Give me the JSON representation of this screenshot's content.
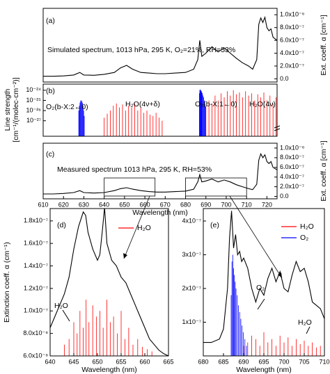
{
  "chart_data": [
    {
      "type": "line",
      "panel_label": "(a)",
      "annotations": [
        {
          "text": "Simulated spectrum, 1013 hPa, 295 K, O₂=21%, RH=53%",
          "color": "#000000"
        }
      ],
      "y_label": [
        "Ext. coeff. α [cm⁻¹]"
      ],
      "y_side": "right",
      "xlim": [
        610,
        725
      ],
      "ylim": [
        -5e-08,
        1.1e-06
      ],
      "yticks": [
        {
          "value": 0,
          "label": "0.0"
        },
        {
          "value": 2e-07,
          "label": "2.0x10⁻⁷"
        },
        {
          "value": 4e-07,
          "label": "4.0x10⁻⁷"
        },
        {
          "value": 6e-07,
          "label": "6.0x10⁻⁷"
        },
        {
          "value": 8e-07,
          "label": "8.0x10⁻⁷"
        },
        {
          "value": 1e-06,
          "label": "1.0x10⁻⁶"
        }
      ],
      "series": [
        {
          "kind": "line",
          "color": "#000000",
          "x": [
            610,
            615,
            620,
            625,
            628,
            630,
            635,
            640,
            645,
            648,
            651,
            654,
            658,
            662,
            666,
            670,
            675,
            680,
            684,
            686,
            687,
            688,
            690,
            693,
            696,
            699,
            702,
            705,
            708,
            711,
            713,
            715,
            716,
            717,
            718,
            719,
            720,
            721,
            722,
            723,
            725
          ],
          "values": [
            4e-08,
            4e-08,
            4.5e-08,
            6e-08,
            1e-07,
            6e-08,
            5.5e-08,
            7e-08,
            1e-07,
            1.7e-07,
            2.1e-07,
            1.5e-07,
            1e-07,
            9e-08,
            8e-08,
            8e-08,
            9e-08,
            1e-07,
            1.5e-07,
            3e-07,
            6e-07,
            3.5e-07,
            4e-07,
            5e-07,
            4.2e-07,
            4.8e-07,
            4e-07,
            3.2e-07,
            2.5e-07,
            2e-07,
            1.5e-07,
            3e-07,
            8.5e-07,
            9.5e-07,
            8.8e-07,
            9.6e-07,
            8e-07,
            7.5e-07,
            7.8e-07,
            6.5e-07,
            6e-07
          ]
        }
      ]
    },
    {
      "type": "stick",
      "panel_label": "(b)",
      "log_y": true,
      "annotations": [
        {
          "text": "O₂(b-X:2←0)",
          "color": "#0000ff"
        },
        {
          "text": "H₂O(4ν+δ)",
          "color": "#ff0000"
        },
        {
          "text": "O₂(b-X:1←0)",
          "color": "#0000ff"
        },
        {
          "text": "H₂O(4ν)",
          "color": "#ff0000"
        }
      ],
      "y_label": [
        "Line strength",
        "[cm⁻¹/(molec·cm⁻²)]"
      ],
      "y_side": "left",
      "xlim": [
        610,
        725
      ],
      "ylim": [
        3e-29,
        4e-24
      ],
      "yticks": [
        {
          "value": 1e-27,
          "label": "10⁻²⁷"
        },
        {
          "value": 1e-26,
          "label": "10⁻²⁶"
        },
        {
          "value": 1e-25,
          "label": "10⁻²⁵"
        },
        {
          "value": 1e-24,
          "label": "10⁻²⁴"
        }
      ],
      "series": [
        {
          "kind": "stick",
          "color": "#0000ff",
          "x": [
            627.5,
            627.8,
            628.1,
            628.4,
            628.7,
            629.0,
            629.3,
            629.6,
            629.9,
            630.2
          ],
          "values": [
            1e-26,
            3e-26,
            6e-26,
            1e-25,
            8e-26,
            1e-25,
            6e-26,
            3e-26,
            1e-26,
            3e-27
          ]
        },
        {
          "kind": "stick",
          "color": "#ff0000",
          "x": [
            640,
            641.5,
            643,
            644.5,
            646,
            647.5,
            649,
            650.5,
            652,
            653.5,
            655,
            656.5,
            658,
            659.5,
            661,
            662.5,
            664,
            665.5,
            667,
            668.5
          ],
          "values": [
            2e-27,
            5e-27,
            1e-26,
            3e-26,
            5e-26,
            2e-26,
            4e-26,
            1e-26,
            3e-26,
            2e-26,
            5e-26,
            1e-26,
            2e-26,
            6e-27,
            1e-26,
            4e-27,
            3e-27,
            6e-27,
            2e-27,
            1e-27
          ]
        },
        {
          "kind": "stick",
          "color": "#0000ff",
          "x": [
            686.8,
            687.0,
            687.2,
            687.4,
            687.6,
            687.8,
            688.0,
            688.3,
            688.6,
            688.9,
            689.2,
            689.5,
            689.8
          ],
          "values": [
            5e-25,
            1e-24,
            1.2e-24,
            1e-24,
            9e-25,
            8e-25,
            6e-25,
            5e-25,
            3e-25,
            2e-25,
            1e-25,
            5e-26,
            2e-26
          ]
        },
        {
          "kind": "stick",
          "color": "#ff0000",
          "x": [
            690,
            691.5,
            693,
            694.5,
            696,
            697.5,
            699,
            700.5,
            702,
            703.5,
            705,
            706.5,
            708,
            709.5,
            711,
            712.5,
            714,
            715.5,
            717,
            718.5,
            720,
            721.5,
            723,
            724.5
          ],
          "values": [
            3e-26,
            1e-25,
            5e-26,
            3e-25,
            1e-25,
            5e-25,
            2e-25,
            8e-25,
            3e-25,
            1e-24,
            4e-25,
            6e-25,
            2e-25,
            8e-25,
            3e-25,
            5e-25,
            1e-25,
            4e-25,
            2e-25,
            6e-25,
            1e-25,
            3e-25,
            5e-26,
            2e-25
          ]
        }
      ]
    },
    {
      "type": "line",
      "panel_label": "(c)",
      "annotations": [
        {
          "text": "Measured spectrum 1013 hPa, 295 K, RH=53%",
          "color": "#000000"
        }
      ],
      "y_label": [
        "Ext. coeff. α [cm⁻¹]"
      ],
      "y_side": "right",
      "x_label": "Wavelength (nm)",
      "xlim": [
        610,
        725
      ],
      "ylim": [
        -5e-08,
        1.1e-06
      ],
      "xticks": [
        610,
        620,
        630,
        640,
        650,
        660,
        670,
        680,
        690,
        700,
        710,
        720
      ],
      "yticks": [
        {
          "value": 0,
          "label": "0.0"
        },
        {
          "value": 2e-07,
          "label": "2.0x10⁻⁷"
        },
        {
          "value": 4e-07,
          "label": "4.0x10⁻⁷"
        },
        {
          "value": 6e-07,
          "label": "6.0x10⁻⁷"
        },
        {
          "value": 8e-07,
          "label": "8.0x10⁻⁷"
        },
        {
          "value": 1e-06,
          "label": "1.0x10⁻⁶"
        }
      ],
      "series": [
        {
          "kind": "line",
          "color": "#000000",
          "x": [
            610,
            615,
            620,
            625,
            628,
            630,
            635,
            640,
            645,
            648,
            651,
            654,
            658,
            662,
            666,
            670,
            675,
            680,
            684,
            686,
            687,
            688,
            690,
            693,
            696,
            699,
            702,
            705,
            708,
            711,
            713,
            715,
            716,
            717,
            718,
            719,
            720,
            721,
            722,
            723,
            725
          ],
          "values": [
            5e-08,
            5e-08,
            6e-08,
            8e-08,
            1.2e-07,
            8e-08,
            7e-08,
            8e-08,
            1.2e-07,
            1.6e-07,
            1.8e-07,
            1.5e-07,
            1.2e-07,
            1e-07,
            9e-08,
            9e-08,
            1e-07,
            1.1e-07,
            1.5e-07,
            3e-07,
            4.5e-07,
            3e-07,
            3.2e-07,
            3.6e-07,
            3e-07,
            3.4e-07,
            3e-07,
            2.4e-07,
            2e-07,
            1.6e-07,
            1.4e-07,
            2.5e-07,
            7.5e-07,
            8.8e-07,
            8e-07,
            8.6e-07,
            7.2e-07,
            6.8e-07,
            7.2e-07,
            6e-07,
            5.5e-07
          ]
        }
      ]
    },
    {
      "type": "line",
      "panel_label": "(d)",
      "annotations": [
        {
          "text": "H₂O",
          "color": "#ff0000"
        }
      ],
      "y_label": [
        "Extinction coeff. α (cm⁻¹)"
      ],
      "y_side": "left",
      "x_label": "Wavelength (nm)",
      "xlim": [
        640,
        665
      ],
      "ylim": [
        6e-08,
        1.91e-07
      ],
      "xticks": [
        640,
        645,
        650,
        655,
        660,
        665
      ],
      "yticks": [
        {
          "value": 6e-08,
          "label": "6.0x10⁻⁸"
        },
        {
          "value": 8e-08,
          "label": "8.0x10⁻⁸"
        },
        {
          "value": 1e-07,
          "label": "1.0x10⁻⁷"
        },
        {
          "value": 1.2e-07,
          "label": "1.2x10⁻⁷"
        },
        {
          "value": 1.4e-07,
          "label": "1.4x10⁻⁷"
        },
        {
          "value": 1.6e-07,
          "label": "1.6x10⁻⁷"
        },
        {
          "value": 1.8e-07,
          "label": "1.8x10⁻⁷"
        }
      ],
      "series": [
        {
          "kind": "stick",
          "name": "H₂O",
          "color": "#ff0000",
          "x": [
            643,
            644,
            645,
            645.7,
            646.3,
            647,
            647.6,
            648.2,
            649,
            649.8,
            650.5,
            651.2,
            652,
            652.7,
            653.4,
            654.2,
            655,
            655.8,
            656.6,
            657.5,
            658.5,
            659.5,
            660.5,
            661.5
          ],
          "values": [
            7e-08,
            7.5e-08,
            9e-08,
            8e-08,
            1e-07,
            8.5e-08,
            1.1e-07,
            9e-08,
            1.05e-07,
            9.5e-08,
            1e-07,
            8.5e-08,
            1.1e-07,
            9e-08,
            9.5e-08,
            8e-08,
            1e-07,
            7.5e-08,
            8.5e-08,
            7e-08,
            7.5e-08,
            6.8e-08,
            6.6e-08,
            6.4e-08
          ]
        },
        {
          "kind": "line",
          "color": "#000000",
          "x": [
            640,
            641,
            642,
            643,
            644,
            645,
            646,
            647,
            647.5,
            648,
            649,
            650,
            650.5,
            651,
            651.5,
            652,
            653,
            654,
            655,
            656,
            657,
            658,
            659,
            660,
            661,
            662,
            663,
            664,
            665
          ],
          "values": [
            8.5e-08,
            9.5e-08,
            1.05e-07,
            1.15e-07,
            1.3e-07,
            1.55e-07,
            1.75e-07,
            1.88e-07,
            1.85e-07,
            1.7e-07,
            1.55e-07,
            1.45e-07,
            1.5e-07,
            1.7e-07,
            1.92e-07,
            1.6e-07,
            1.45e-07,
            1.4e-07,
            1.3e-07,
            1.25e-07,
            1.15e-07,
            1.05e-07,
            9.5e-08,
            8.5e-08,
            7.5e-08,
            7e-08,
            6.5e-08,
            6.2e-08,
            6e-08
          ]
        }
      ]
    },
    {
      "type": "line",
      "panel_label": "(e)",
      "annotations": [
        {
          "text": "O₂",
          "color": "#0000ff"
        },
        {
          "text": "H₂O",
          "color": "#ff0000"
        }
      ],
      "y_side": "left",
      "x_label": "Wavelength (nm)",
      "xlim": [
        680,
        710
      ],
      "ylim": [
        0,
        4.37e-07
      ],
      "xticks": [
        680,
        685,
        690,
        695,
        700,
        705,
        710
      ],
      "yticks": [
        {
          "value": 1e-07,
          "label": "1x10⁻⁷"
        },
        {
          "value": 2e-07,
          "label": "2x10⁻⁷"
        },
        {
          "value": 3e-07,
          "label": "3x10⁻⁷"
        },
        {
          "value": 4e-07,
          "label": "4x10⁻⁷"
        }
      ],
      "series": [
        {
          "kind": "stick",
          "name": "H₂O",
          "color": "#ff0000",
          "x": [
            690,
            691,
            692,
            693,
            694,
            695,
            696,
            697,
            698,
            699,
            700,
            701,
            702,
            703,
            704,
            705,
            706,
            707,
            708,
            709
          ],
          "values": [
            3e-08,
            4e-08,
            6e-08,
            5e-08,
            3e-08,
            7e-08,
            4e-08,
            5e-08,
            3e-08,
            6e-08,
            4e-08,
            5.5e-08,
            3e-08,
            5e-08,
            3.5e-08,
            4.5e-08,
            3e-08,
            4e-08,
            2.5e-08,
            3e-08
          ]
        },
        {
          "kind": "stick",
          "name": "O₂",
          "color": "#0000ff",
          "x": [
            686.9,
            687.1,
            687.3,
            687.5,
            687.7,
            687.9,
            688.1,
            688.4,
            688.7,
            689.0,
            689.3,
            689.6,
            689.9,
            690.3,
            690.7
          ],
          "values": [
            1.8e-07,
            2.8e-07,
            3e-07,
            2.6e-07,
            2.4e-07,
            2.2e-07,
            2e-07,
            1.8e-07,
            1.5e-07,
            1.3e-07,
            1.1e-07,
            9e-08,
            7e-08,
            5e-08,
            3e-08
          ]
        },
        {
          "kind": "line",
          "color": "#000000",
          "x": [
            680,
            682,
            684,
            685,
            686,
            686.5,
            687,
            687.5,
            688,
            688.5,
            689,
            689.5,
            690,
            691,
            692,
            693,
            694,
            695,
            696,
            697,
            698,
            699,
            700,
            701,
            702,
            703,
            704,
            705,
            706,
            707,
            708,
            709,
            710
          ],
          "values": [
            4e-08,
            4e-08,
            5e-08,
            8e-08,
            2e-07,
            3.5e-07,
            4.3e-07,
            3.2e-07,
            3.6e-07,
            3e-07,
            3.1e-07,
            2.8e-07,
            2.9e-07,
            2.6e-07,
            2e-07,
            1.6e-07,
            2e-07,
            1.8e-07,
            2.3e-07,
            2.6e-07,
            2.2e-07,
            2.5e-07,
            2e-07,
            1.9e-07,
            2.4e-07,
            2.8e-07,
            2.5e-07,
            2.6e-07,
            2.2e-07,
            1.6e-07,
            1.5e-07,
            1.4e-07,
            1.1e-07
          ]
        }
      ]
    }
  ]
}
